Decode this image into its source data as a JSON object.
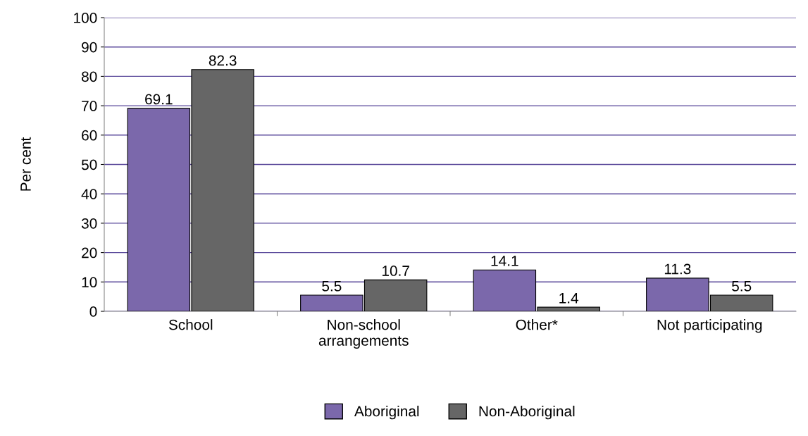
{
  "chart_data": {
    "type": "bar",
    "ylabel": "Per cent",
    "categories": [
      "School",
      "Non-school\narrangements",
      "Other*",
      "Not participating"
    ],
    "series": [
      {
        "name": "Aboriginal",
        "color": "#7b68ab",
        "values": [
          69.1,
          5.5,
          14.1,
          11.3
        ]
      },
      {
        "name": "Non-Aboriginal",
        "color": "#666666",
        "values": [
          82.3,
          10.7,
          1.4,
          5.5
        ]
      }
    ],
    "ylim": [
      0,
      100
    ],
    "yticks": [
      0,
      10,
      20,
      30,
      40,
      50,
      60,
      70,
      80,
      90,
      100
    ],
    "grid": "y",
    "legend": "bottom",
    "data_labels": true
  }
}
